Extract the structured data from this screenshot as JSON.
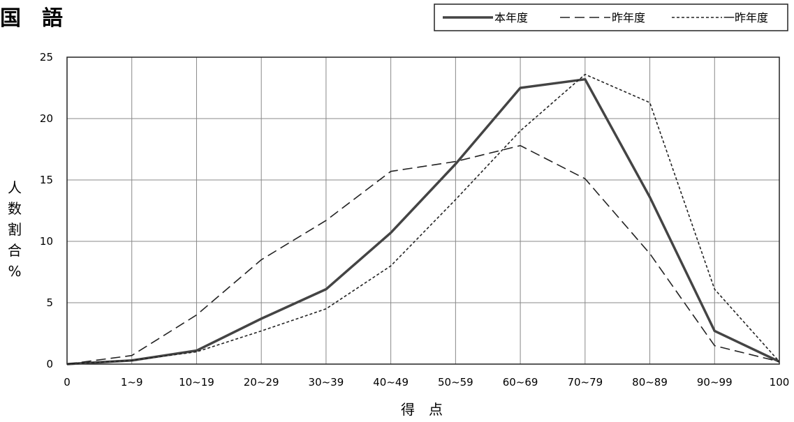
{
  "chart_data": {
    "type": "line",
    "title": "国　語",
    "xlabel": "得　点",
    "ylabel": "人数割合%",
    "categories": [
      "0",
      "1~9",
      "10~19",
      "20~29",
      "30~39",
      "40~49",
      "50~59",
      "60~69",
      "70~79",
      "80~89",
      "90~99",
      "100"
    ],
    "ylim": [
      0,
      25
    ],
    "yticks": [
      0,
      5,
      10,
      15,
      20,
      25
    ],
    "grid": true,
    "legend_position": "top-right",
    "series": [
      {
        "name": "本年度",
        "style": "solid-thick",
        "values": [
          0,
          0.3,
          1.1,
          3.7,
          6.1,
          10.7,
          16.3,
          22.5,
          23.2,
          13.6,
          2.7,
          0.2
        ]
      },
      {
        "name": "昨年度",
        "style": "dashed",
        "values": [
          0,
          0.7,
          4.0,
          8.5,
          11.7,
          15.7,
          16.5,
          17.8,
          15.1,
          9.0,
          1.5,
          0.2
        ]
      },
      {
        "name": "一昨年度",
        "style": "dotted",
        "values": [
          0,
          0.3,
          1.0,
          2.7,
          4.5,
          8.0,
          13.4,
          19.0,
          23.6,
          21.3,
          6.1,
          0.2
        ]
      }
    ]
  }
}
